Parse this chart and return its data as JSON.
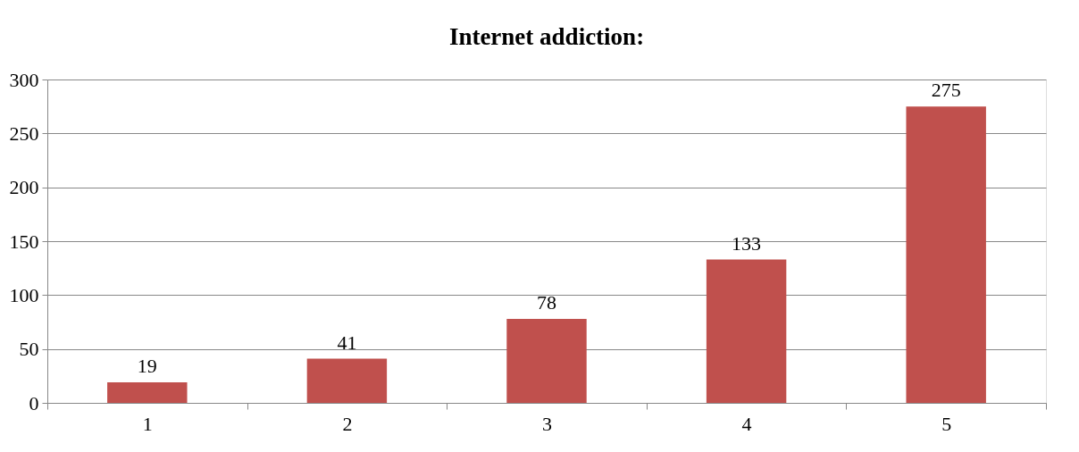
{
  "chart_data": {
    "type": "bar",
    "title": "Internet addiction:",
    "categories": [
      "1",
      "2",
      "3",
      "4",
      "5"
    ],
    "values": [
      19,
      41,
      78,
      133,
      275
    ],
    "color": "#c0504d",
    "ylim": [
      0,
      300
    ],
    "yticks": [
      0,
      50,
      100,
      150,
      200,
      250,
      300
    ],
    "grid": "y",
    "data_labels": true
  }
}
